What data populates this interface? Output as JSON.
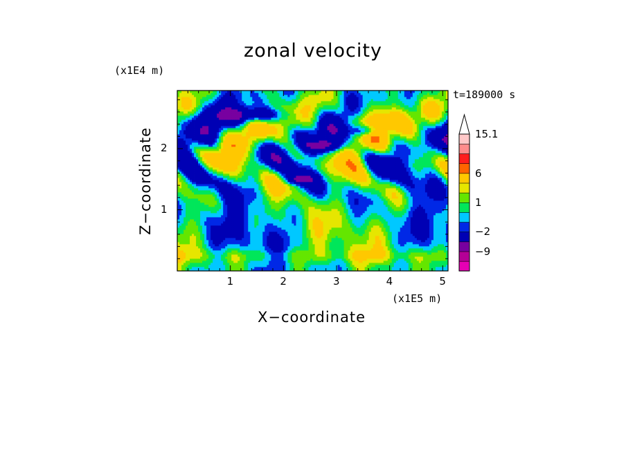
{
  "chart_data": {
    "type": "heatmap",
    "title": "zonal velocity",
    "xlabel": "X−coordinate",
    "ylabel": "Z−coordinate",
    "x_unit_label": "(x1E5 m)",
    "y_unit_label": "(x1E4 m)",
    "time_label": "t=189000 s",
    "xlim": [
      0,
      5.1
    ],
    "ylim": [
      0,
      2.95
    ],
    "x_ticks": [
      1,
      2,
      3,
      4,
      5
    ],
    "y_ticks": [
      1,
      2
    ],
    "x_tick_labels": [
      "1",
      "2",
      "3",
      "4",
      "5"
    ],
    "y_tick_labels": [
      "1",
      "2"
    ],
    "colorbar": {
      "max_label": "15.1",
      "labels": [
        {
          "text": "15.1",
          "value": 15.1
        },
        {
          "text": "6",
          "value": 6
        },
        {
          "text": "1",
          "value": 1
        },
        {
          "text": "−2",
          "value": -2
        },
        {
          "text": "−9",
          "value": -9
        }
      ],
      "levels": [
        -15,
        -12,
        -9,
        -6,
        -2,
        -1,
        0,
        1,
        2,
        3,
        6,
        9,
        12,
        15.1
      ],
      "colors": [
        "#e600b4",
        "#b40096",
        "#7800a0",
        "#0000b4",
        "#0028e6",
        "#00c8ff",
        "#00e65a",
        "#64e600",
        "#e6e600",
        "#ffc800",
        "#ff6400",
        "#ff1e1e",
        "#ff8c8c",
        "#ffc8c8"
      ],
      "extend": "max"
    },
    "field_description_values": {
      "dominant_band_z_ranges": [
        [
          0.0,
          0.6
        ],
        [
          0.6,
          1.3
        ],
        [
          1.3,
          2.0
        ],
        [
          2.0,
          2.95
        ]
      ]
    }
  }
}
